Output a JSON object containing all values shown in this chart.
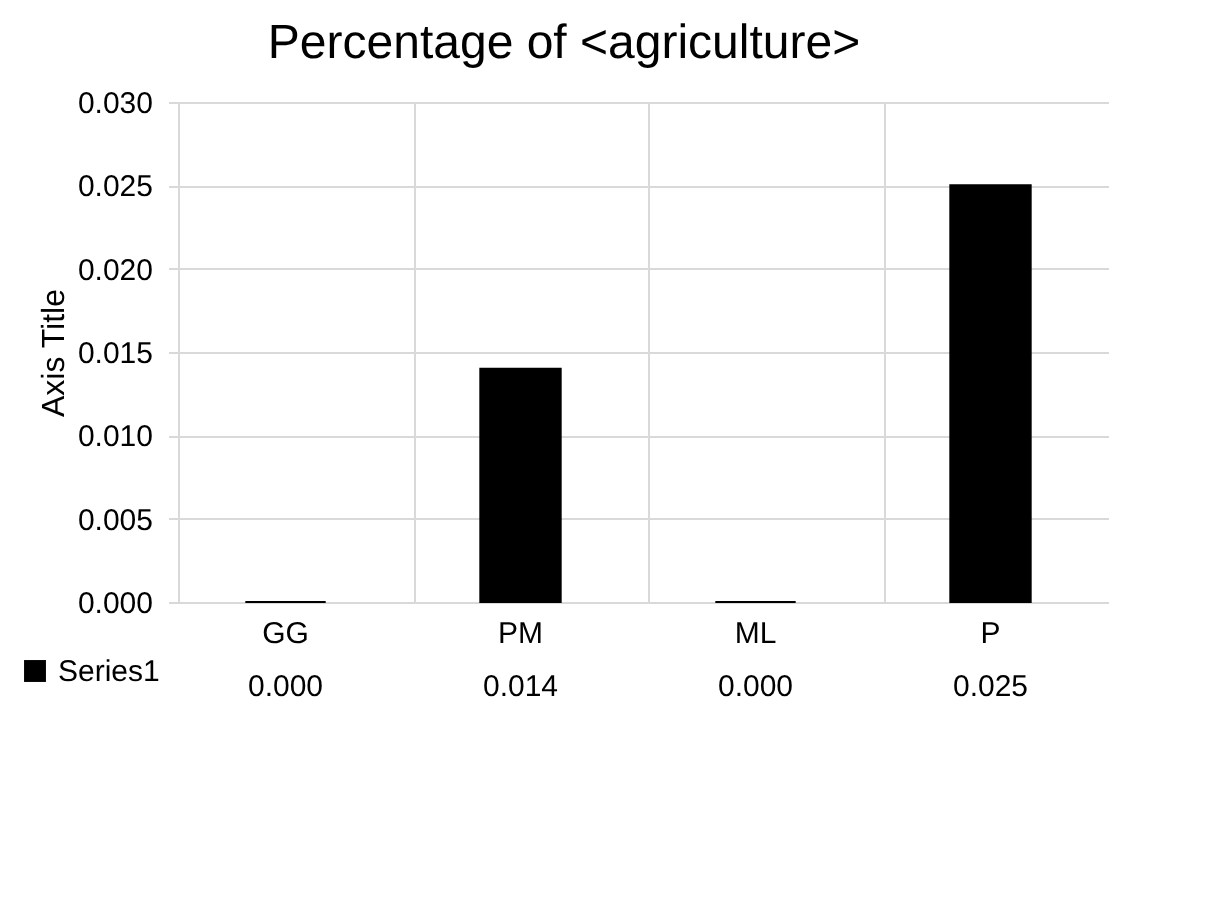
{
  "chart_data": {
    "type": "bar",
    "title": "Percentage of <agriculture>",
    "ylabel": "Axis Title",
    "categories": [
      "GG",
      "PM",
      "ML",
      "P"
    ],
    "series": [
      {
        "name": "Series1",
        "color": "#000000",
        "values": [
          0.0,
          0.014,
          0.0,
          0.025
        ],
        "value_labels": [
          "0.000",
          "0.014",
          "0.000",
          "0.025"
        ]
      }
    ],
    "ylim": [
      0,
      0.03
    ],
    "yticks": [
      {
        "value": 0,
        "label": "0.000"
      },
      {
        "value": 0.005,
        "label": "0.005"
      },
      {
        "value": 0.01,
        "label": "0.010"
      },
      {
        "value": 0.015,
        "label": "0.015"
      },
      {
        "value": 0.02,
        "label": "0.020"
      },
      {
        "value": 0.025,
        "label": "0.025"
      },
      {
        "value": 0.03,
        "label": "0.030"
      }
    ],
    "grid": "y",
    "legend": "bottom"
  }
}
